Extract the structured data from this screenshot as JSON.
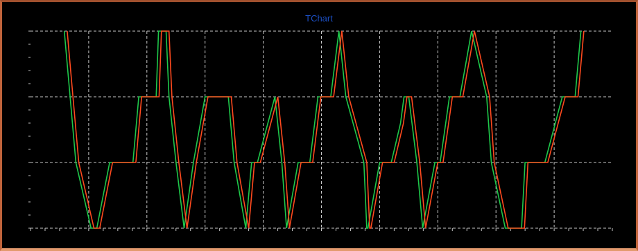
{
  "chart_data": {
    "type": "line",
    "title": "TChart",
    "xlabel": "",
    "ylabel": "",
    "xlim": [
      0,
      100
    ],
    "ylim": [
      0,
      3
    ],
    "grid": true,
    "colors": {
      "background": "#000000",
      "grid": "#c8c8c8",
      "title": "#1c4fc4",
      "green": "#1ec84a",
      "red": "#ff4a1e"
    },
    "series": [
      {
        "color": "#1ec84a",
        "x": [
          5.8,
          6.8,
          7.8,
          10.4,
          11.4,
          13.6,
          17.6,
          18.6,
          21.6,
          22.0,
          23.3,
          23.8,
          25.0,
          26.4,
          28.0,
          30.0,
          34.0,
          35.0,
          37.0,
          38.0,
          39.0,
          42.0,
          43.2,
          44.0,
          46.0,
          48.0,
          49.4,
          51.6,
          53.0,
          54.2,
          57.3,
          57.8,
          58.0,
          60.0,
          62.0,
          63.6,
          64.2,
          65.0,
          66.4,
          67.4,
          69.5,
          70.4,
          72.0,
          73.8,
          75.8,
          78.4,
          79.2,
          81.6,
          84.4,
          85.0,
          85.8,
          88.4,
          91.4,
          93.6,
          94.6
        ],
        "y": [
          3,
          2,
          1,
          0,
          0,
          1,
          1,
          2,
          2,
          3,
          3,
          2,
          1,
          0,
          1,
          2,
          2,
          1,
          0,
          1,
          1,
          2,
          1,
          0,
          1,
          1,
          2,
          2,
          3,
          2,
          1,
          0,
          0,
          1,
          1,
          1.6,
          2,
          2,
          1,
          0,
          1,
          1,
          2,
          2,
          3,
          2,
          1,
          0,
          0,
          1,
          1,
          1,
          2,
          2,
          3
        ]
      },
      {
        "color": "#ff4a1e",
        "x": [
          6.3,
          7.3,
          8.3,
          10.9,
          11.9,
          14.1,
          18.1,
          19.1,
          22.1,
          22.5,
          23.8,
          24.3,
          25.5,
          26.9,
          28.5,
          30.5,
          34.5,
          35.5,
          37.5,
          38.5,
          39.5,
          42.5,
          43.7,
          44.5,
          46.5,
          48.5,
          49.9,
          52.1,
          53.5,
          54.7,
          57.8,
          58.3,
          58.5,
          60.5,
          62.5,
          64.1,
          64.7,
          65.5,
          66.9,
          67.9,
          70.0,
          70.9,
          72.5,
          74.3,
          76.3,
          78.9,
          79.7,
          82.1,
          84.9,
          85.5,
          86.3,
          88.9,
          91.9,
          94.1,
          95.1
        ],
        "y": [
          3,
          2,
          1,
          0,
          0,
          1,
          1,
          2,
          2,
          3,
          3,
          2,
          1,
          0,
          1,
          2,
          2,
          1,
          0,
          1,
          1,
          2,
          1,
          0,
          1,
          1,
          2,
          2,
          3,
          2,
          1,
          0,
          0,
          1,
          1,
          1.6,
          2,
          2,
          1,
          0,
          1,
          1,
          2,
          2,
          3,
          2,
          1,
          0,
          0,
          1,
          1,
          1,
          2,
          2,
          3
        ]
      }
    ]
  }
}
